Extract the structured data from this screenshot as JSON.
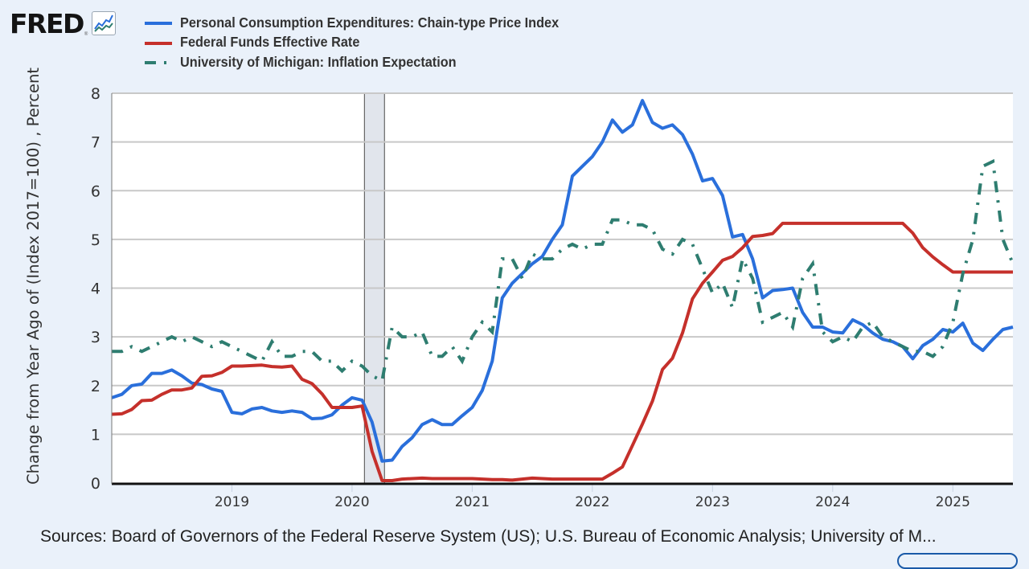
{
  "logo": {
    "text": "FRED",
    "registered": "®",
    "icon": "line-chart-icon"
  },
  "legend": [
    {
      "label": "Personal Consumption Expenditures: Chain-type Price Index",
      "color": "#2a6fdb",
      "style": "solid"
    },
    {
      "label": "Federal Funds Effective Rate",
      "color": "#c5302b",
      "style": "solid"
    },
    {
      "label": "University of Michigan: Inflation Expectation",
      "color": "#2e7d70",
      "style": "dash-dot"
    }
  ],
  "source_text": "Sources: Board of Governors of the Federal Reserve System (US); U.S. Bureau of Economic Analysis; University of M...",
  "chart_data": {
    "type": "line",
    "title": "",
    "xlabel": "",
    "ylabel": "Change from Year Ago of (Index 2017=100) , Percent",
    "ylim": [
      0,
      8
    ],
    "yticks": [
      0,
      1,
      2,
      3,
      4,
      5,
      6,
      7,
      8
    ],
    "xticks": [
      "2019",
      "2020",
      "2021",
      "2022",
      "2023",
      "2024",
      "2025"
    ],
    "x_start": "2018-01",
    "x_end": "2025-07",
    "grid": true,
    "legend_position": "top-left",
    "recession_shading": [
      {
        "start": "2020-02",
        "end": "2020-04"
      }
    ],
    "series": [
      {
        "name": "Personal Consumption Expenditures: Chain-type Price Index",
        "color": "#2a6fdb",
        "start": "2018-01",
        "values": [
          1.75,
          1.82,
          2.0,
          2.03,
          2.25,
          2.25,
          2.32,
          2.2,
          2.05,
          2.02,
          1.93,
          1.88,
          1.45,
          1.42,
          1.52,
          1.55,
          1.48,
          1.45,
          1.48,
          1.45,
          1.32,
          1.33,
          1.4,
          1.6,
          1.75,
          1.7,
          1.25,
          0.45,
          0.47,
          0.75,
          0.93,
          1.2,
          1.3,
          1.2,
          1.2,
          1.38,
          1.55,
          1.9,
          2.5,
          3.8,
          4.1,
          4.3,
          4.5,
          4.65,
          5.0,
          5.3,
          6.3,
          6.5,
          6.7,
          7.0,
          7.45,
          7.2,
          7.35,
          7.85,
          7.4,
          7.28,
          7.35,
          7.15,
          6.75,
          6.2,
          6.25,
          5.9,
          5.05,
          5.1,
          4.6,
          3.8,
          3.95,
          3.97,
          4.0,
          3.5,
          3.2,
          3.2,
          3.1,
          3.08,
          3.35,
          3.25,
          3.08,
          2.95,
          2.9,
          2.8,
          2.55,
          2.82,
          2.95,
          3.15,
          3.1,
          3.28,
          2.87,
          2.72,
          2.95,
          3.15,
          3.2
        ]
      },
      {
        "name": "Federal Funds Effective Rate",
        "color": "#c5302b",
        "start": "2018-01",
        "values": [
          1.41,
          1.42,
          1.51,
          1.69,
          1.7,
          1.82,
          1.91,
          1.91,
          1.95,
          2.19,
          2.2,
          2.27,
          2.4,
          2.4,
          2.41,
          2.42,
          2.39,
          2.38,
          2.4,
          2.13,
          2.04,
          1.83,
          1.55,
          1.55,
          1.55,
          1.58,
          0.65,
          0.05,
          0.05,
          0.08,
          0.09,
          0.1,
          0.09,
          0.09,
          0.09,
          0.09,
          0.09,
          0.08,
          0.07,
          0.07,
          0.06,
          0.08,
          0.1,
          0.09,
          0.08,
          0.08,
          0.08,
          0.08,
          0.08,
          0.08,
          0.2,
          0.33,
          0.77,
          1.21,
          1.68,
          2.33,
          2.56,
          3.08,
          3.78,
          4.1,
          4.33,
          4.57,
          4.65,
          4.83,
          5.06,
          5.08,
          5.12,
          5.33,
          5.33,
          5.33,
          5.33,
          5.33,
          5.33,
          5.33,
          5.33,
          5.33,
          5.33,
          5.33,
          5.33,
          5.33,
          5.13,
          4.83,
          4.64,
          4.48,
          4.33,
          4.33,
          4.33,
          4.33,
          4.33,
          4.33,
          4.33
        ]
      },
      {
        "name": "University of Michigan: Inflation Expectation",
        "color": "#2e7d70",
        "start": "2018-01",
        "values": [
          2.7,
          2.7,
          2.8,
          2.7,
          2.8,
          2.9,
          3.0,
          2.9,
          3.0,
          2.9,
          2.8,
          2.9,
          2.8,
          2.7,
          2.6,
          2.5,
          2.9,
          2.6,
          2.6,
          2.7,
          2.7,
          2.5,
          2.5,
          2.3,
          2.5,
          2.4,
          2.2,
          2.1,
          3.2,
          3.0,
          3.0,
          3.1,
          2.6,
          2.6,
          2.8,
          2.5,
          3.0,
          3.3,
          3.1,
          4.6,
          4.6,
          4.2,
          4.7,
          4.6,
          4.6,
          4.8,
          4.9,
          4.8,
          4.9,
          4.9,
          5.4,
          5.4,
          5.3,
          5.3,
          5.2,
          4.8,
          4.7,
          5.0,
          4.9,
          4.4,
          3.9,
          4.1,
          3.6,
          4.6,
          4.2,
          3.3,
          3.4,
          3.5,
          3.2,
          4.2,
          4.5,
          3.1,
          2.9,
          3.0,
          2.9,
          3.2,
          3.3,
          3.0,
          2.9,
          2.8,
          2.7,
          2.7,
          2.6,
          2.8,
          3.3,
          4.3,
          5.0,
          6.5,
          6.6,
          5.0,
          4.5
        ]
      }
    ]
  }
}
